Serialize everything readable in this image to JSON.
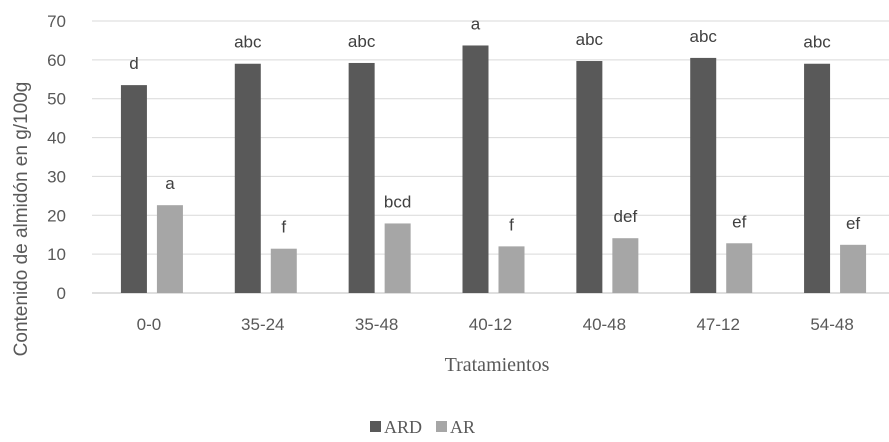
{
  "chart_data": {
    "type": "bar",
    "xlabel": "Tratamientos",
    "ylabel": "Contenido de almidón en g/100g",
    "ylim": [
      0,
      70
    ],
    "yticks": [
      0,
      10,
      20,
      30,
      40,
      50,
      60,
      70
    ],
    "grid": true,
    "legend_position": "bottom",
    "categories": [
      "0-0",
      "35-24",
      "35-48",
      "40-12",
      "40-48",
      "47-12",
      "54-48"
    ],
    "series": [
      {
        "name": "ARD",
        "color": "#595959",
        "values": [
          53.5,
          59.0,
          59.2,
          63.7,
          59.7,
          60.5,
          59.0
        ],
        "labels": [
          "d",
          "abc",
          "abc",
          "a",
          "abc",
          "abc",
          "abc"
        ]
      },
      {
        "name": "AR",
        "color": "#a6a6a6",
        "values": [
          22.6,
          11.4,
          17.9,
          12.0,
          14.1,
          12.8,
          12.4
        ],
        "labels": [
          "a",
          "f",
          "bcd",
          "f",
          "def",
          "ef",
          "ef"
        ]
      }
    ]
  }
}
